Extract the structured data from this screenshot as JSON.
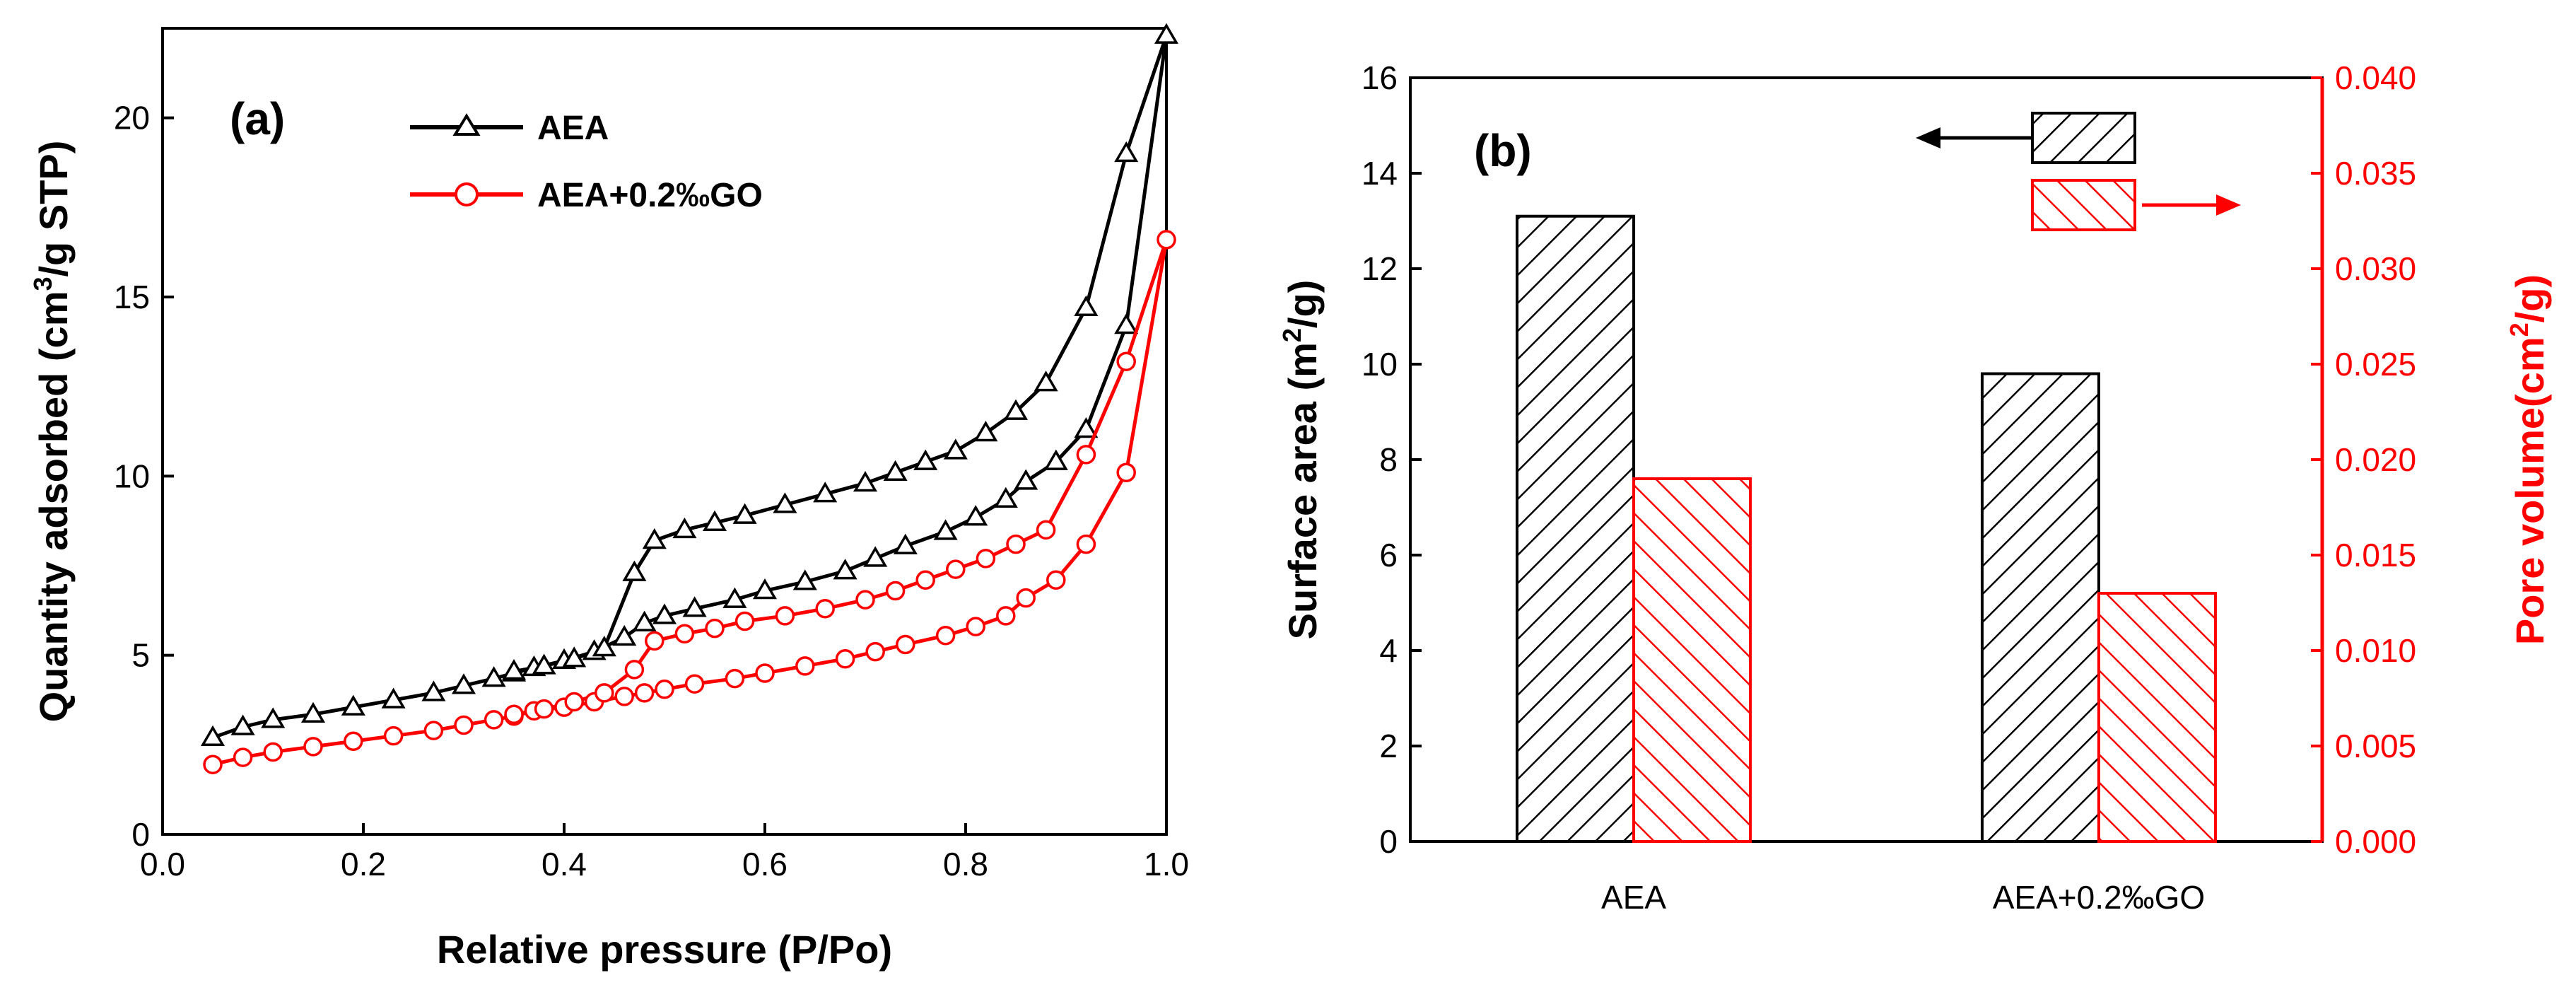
{
  "chart_data": [
    {
      "type": "line",
      "panel_label": "(a)",
      "xlabel": "Relative pressure (P/Po)",
      "ylabel_parts": [
        "Quantity adsorbed (cm",
        "3",
        "/g STP)"
      ],
      "xlim": [
        0.0,
        1.0
      ],
      "ylim": [
        0,
        22.5
      ],
      "xticks": [
        0.0,
        0.2,
        0.4,
        0.6,
        0.8,
        1.0
      ],
      "xtick_labels": [
        "0.0",
        "0.2",
        "0.4",
        "0.6",
        "0.8",
        "1.0"
      ],
      "yticks": [
        0,
        5,
        10,
        15,
        20
      ],
      "ytick_labels": [
        "0",
        "5",
        "10",
        "15",
        "20"
      ],
      "legend_position": "top-center",
      "series": [
        {
          "name": "AEA",
          "color": "#000000",
          "marker": "triangle",
          "x": [
            0.05,
            0.08,
            0.11,
            0.15,
            0.19,
            0.23,
            0.27,
            0.3,
            0.33,
            0.35,
            0.37,
            0.4,
            0.43,
            0.46,
            0.48,
            0.5,
            0.53,
            0.57,
            0.6,
            0.64,
            0.68,
            0.71,
            0.74,
            0.78,
            0.81,
            0.84,
            0.86,
            0.89,
            0.92,
            0.96,
            1.0,
            0.96,
            0.92,
            0.88,
            0.85,
            0.82,
            0.79,
            0.76,
            0.73,
            0.7,
            0.66,
            0.62,
            0.58,
            0.55,
            0.52,
            0.49,
            0.47,
            0.44,
            0.41,
            0.38,
            0.35
          ],
          "y": [
            2.7,
            3.0,
            3.2,
            3.35,
            3.55,
            3.75,
            3.95,
            4.15,
            4.35,
            4.5,
            4.65,
            4.85,
            5.1,
            5.5,
            5.9,
            6.1,
            6.3,
            6.55,
            6.8,
            7.05,
            7.35,
            7.7,
            8.05,
            8.45,
            8.85,
            9.35,
            9.85,
            10.4,
            11.3,
            14.2,
            22.3,
            19.0,
            14.7,
            12.6,
            11.8,
            11.2,
            10.7,
            10.4,
            10.1,
            9.8,
            9.5,
            9.2,
            8.9,
            8.7,
            8.5,
            8.2,
            7.3,
            5.2,
            4.9,
            4.7,
            4.55
          ]
        },
        {
          "name": "AEA+0.2‰GO",
          "color": "#ff0000",
          "marker": "circle",
          "x": [
            0.05,
            0.08,
            0.11,
            0.15,
            0.19,
            0.23,
            0.27,
            0.3,
            0.33,
            0.35,
            0.37,
            0.4,
            0.43,
            0.46,
            0.48,
            0.5,
            0.53,
            0.57,
            0.6,
            0.64,
            0.68,
            0.71,
            0.74,
            0.78,
            0.81,
            0.84,
            0.86,
            0.89,
            0.92,
            0.96,
            1.0,
            0.96,
            0.92,
            0.88,
            0.85,
            0.82,
            0.79,
            0.76,
            0.73,
            0.7,
            0.66,
            0.62,
            0.58,
            0.55,
            0.52,
            0.49,
            0.47,
            0.44,
            0.41,
            0.38,
            0.35
          ],
          "y": [
            1.95,
            2.15,
            2.3,
            2.45,
            2.6,
            2.75,
            2.9,
            3.05,
            3.2,
            3.3,
            3.45,
            3.55,
            3.7,
            3.85,
            3.95,
            4.05,
            4.2,
            4.35,
            4.5,
            4.7,
            4.9,
            5.1,
            5.3,
            5.55,
            5.8,
            6.1,
            6.6,
            7.1,
            8.1,
            10.1,
            16.6,
            13.2,
            10.6,
            8.5,
            8.1,
            7.7,
            7.4,
            7.1,
            6.8,
            6.55,
            6.3,
            6.1,
            5.95,
            5.75,
            5.6,
            5.4,
            4.6,
            3.95,
            3.7,
            3.5,
            3.35
          ]
        }
      ]
    },
    {
      "type": "bar",
      "panel_label": "(b)",
      "categories": [
        "AEA",
        "AEA+0.2‰GO"
      ],
      "ylabel_left_parts": [
        "Surface area (m",
        "2",
        "/g)"
      ],
      "ylabel_right_parts": [
        "Pore volume(cm",
        "2",
        "/g)"
      ],
      "ylim_left": [
        0,
        16
      ],
      "ylim_right": [
        0.0,
        0.04
      ],
      "yticks_left": [
        0,
        2,
        4,
        6,
        8,
        10,
        12,
        14,
        16
      ],
      "ytick_labels_left": [
        "0",
        "2",
        "4",
        "6",
        "8",
        "10",
        "12",
        "14",
        "16"
      ],
      "yticks_right": [
        0.0,
        0.005,
        0.01,
        0.015,
        0.02,
        0.025,
        0.03,
        0.035,
        0.04
      ],
      "ytick_labels_right": [
        "0.000",
        "0.005",
        "0.010",
        "0.015",
        "0.020",
        "0.025",
        "0.030",
        "0.035",
        "0.040"
      ],
      "legend_position": "top-right",
      "series": [
        {
          "name": "Surface area",
          "axis": "left",
          "color": "#000000",
          "values": [
            13.1,
            9.8
          ]
        },
        {
          "name": "Pore volume",
          "axis": "right",
          "color": "#ff0000",
          "values": [
            0.019,
            0.013
          ]
        }
      ]
    }
  ]
}
